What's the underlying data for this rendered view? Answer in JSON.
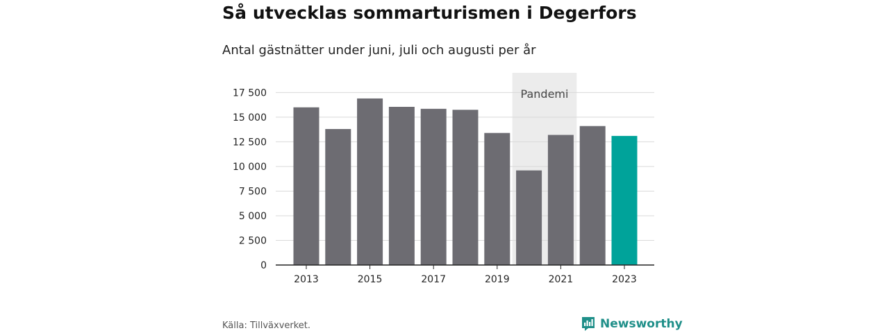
{
  "title": "Så utvecklas sommarturismen i Degerfors",
  "subtitle": "Antal gästnätter under juni, juli och augusti per år",
  "source": "Källa: Tillväxverket.",
  "brand": "Newsworthy",
  "colors": {
    "bar": "#6d6c72",
    "highlight": "#00a39a",
    "band": "#ececec",
    "grid": "#d9d9d9",
    "axis": "#222222",
    "brand": "#1f8f89"
  },
  "chart_data": {
    "type": "bar",
    "categories": [
      "2013",
      "2014",
      "2015",
      "2016",
      "2017",
      "2018",
      "2019",
      "2020",
      "2021",
      "2022",
      "2023"
    ],
    "values": [
      16000,
      13800,
      16900,
      16050,
      15850,
      15750,
      13400,
      9600,
      13200,
      14100,
      13100
    ],
    "highlight_category": "2023",
    "x_tick_labels": [
      "2013",
      "2015",
      "2017",
      "2019",
      "2021",
      "2023"
    ],
    "y_ticks": [
      0,
      2500,
      5000,
      7500,
      10000,
      12500,
      15000,
      17500
    ],
    "y_tick_labels": [
      "0",
      "2 500",
      "5 000",
      "7 500",
      "10 000",
      "12 500",
      "15 000",
      "17 500"
    ],
    "ylim": [
      0,
      19500
    ],
    "grid": true,
    "annotation": {
      "label": "Pandemi",
      "from": "2020",
      "to": "2021"
    },
    "xlabel": "",
    "ylabel": ""
  }
}
